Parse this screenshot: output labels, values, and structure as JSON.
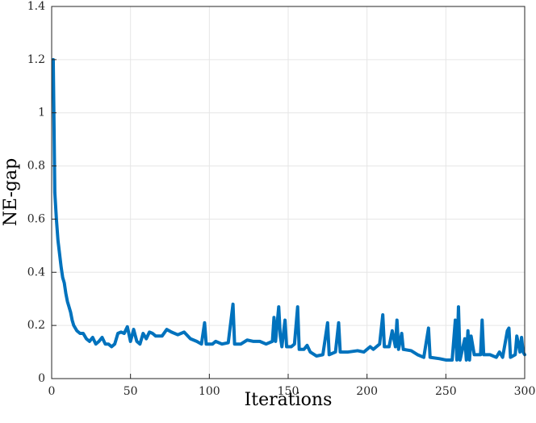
{
  "chart_data": {
    "type": "line",
    "xlabel": "Iterations",
    "ylabel": "NE-gap",
    "x": [
      1,
      2,
      3,
      4,
      5,
      6,
      7,
      8,
      9,
      10,
      11,
      12,
      13,
      14,
      16,
      18,
      20,
      22,
      24,
      26,
      28,
      30,
      32,
      34,
      36,
      38,
      40,
      42,
      44,
      46,
      48,
      50,
      52,
      54,
      56,
      58,
      60,
      62,
      64,
      66,
      70,
      73,
      76,
      80,
      84,
      88,
      92,
      95,
      97,
      98,
      102,
      104,
      108,
      112,
      115,
      116,
      120,
      124,
      128,
      132,
      136,
      140,
      141,
      142,
      144,
      145,
      146,
      148,
      149,
      152,
      154,
      156,
      157,
      160,
      162,
      164,
      168,
      172,
      175,
      176,
      180,
      182,
      183,
      188,
      194,
      198,
      202,
      204,
      208,
      210,
      211,
      214,
      216,
      218,
      219,
      220,
      222,
      223,
      228,
      232,
      236,
      239,
      240,
      246,
      250,
      254,
      256,
      257,
      258,
      259,
      262,
      263,
      264,
      265,
      266,
      268,
      272,
      273,
      274,
      278,
      282,
      284,
      286,
      289,
      290,
      291,
      294,
      295,
      297,
      298,
      299,
      300
    ],
    "series": [
      {
        "name": "NE-gap",
        "color": "#0072bd",
        "values": [
          1.2,
          0.7,
          0.6,
          0.52,
          0.47,
          0.42,
          0.38,
          0.36,
          0.32,
          0.29,
          0.27,
          0.25,
          0.22,
          0.2,
          0.18,
          0.17,
          0.17,
          0.15,
          0.14,
          0.155,
          0.13,
          0.14,
          0.155,
          0.13,
          0.13,
          0.12,
          0.13,
          0.17,
          0.175,
          0.17,
          0.195,
          0.14,
          0.185,
          0.14,
          0.13,
          0.17,
          0.15,
          0.175,
          0.17,
          0.16,
          0.16,
          0.185,
          0.175,
          0.165,
          0.175,
          0.15,
          0.14,
          0.13,
          0.21,
          0.13,
          0.13,
          0.14,
          0.13,
          0.135,
          0.28,
          0.13,
          0.13,
          0.145,
          0.14,
          0.14,
          0.13,
          0.14,
          0.23,
          0.14,
          0.27,
          0.16,
          0.12,
          0.22,
          0.12,
          0.12,
          0.13,
          0.27,
          0.11,
          0.11,
          0.125,
          0.1,
          0.085,
          0.09,
          0.21,
          0.09,
          0.1,
          0.21,
          0.1,
          0.1,
          0.105,
          0.1,
          0.12,
          0.11,
          0.13,
          0.24,
          0.12,
          0.12,
          0.18,
          0.12,
          0.22,
          0.11,
          0.17,
          0.11,
          0.105,
          0.09,
          0.08,
          0.19,
          0.08,
          0.075,
          0.07,
          0.07,
          0.22,
          0.07,
          0.27,
          0.07,
          0.15,
          0.07,
          0.18,
          0.07,
          0.16,
          0.09,
          0.09,
          0.22,
          0.09,
          0.09,
          0.08,
          0.1,
          0.08,
          0.18,
          0.19,
          0.08,
          0.09,
          0.16,
          0.1,
          0.155,
          0.1,
          0.09
        ]
      }
    ],
    "xlim": [
      0,
      300
    ],
    "xticks": [
      0,
      50,
      100,
      150,
      200,
      250,
      300
    ],
    "ylim": [
      0,
      1.4
    ],
    "yticks": [
      0,
      0.2,
      0.4,
      0.6,
      0.8,
      1,
      1.2,
      1.4
    ],
    "grid": true
  }
}
